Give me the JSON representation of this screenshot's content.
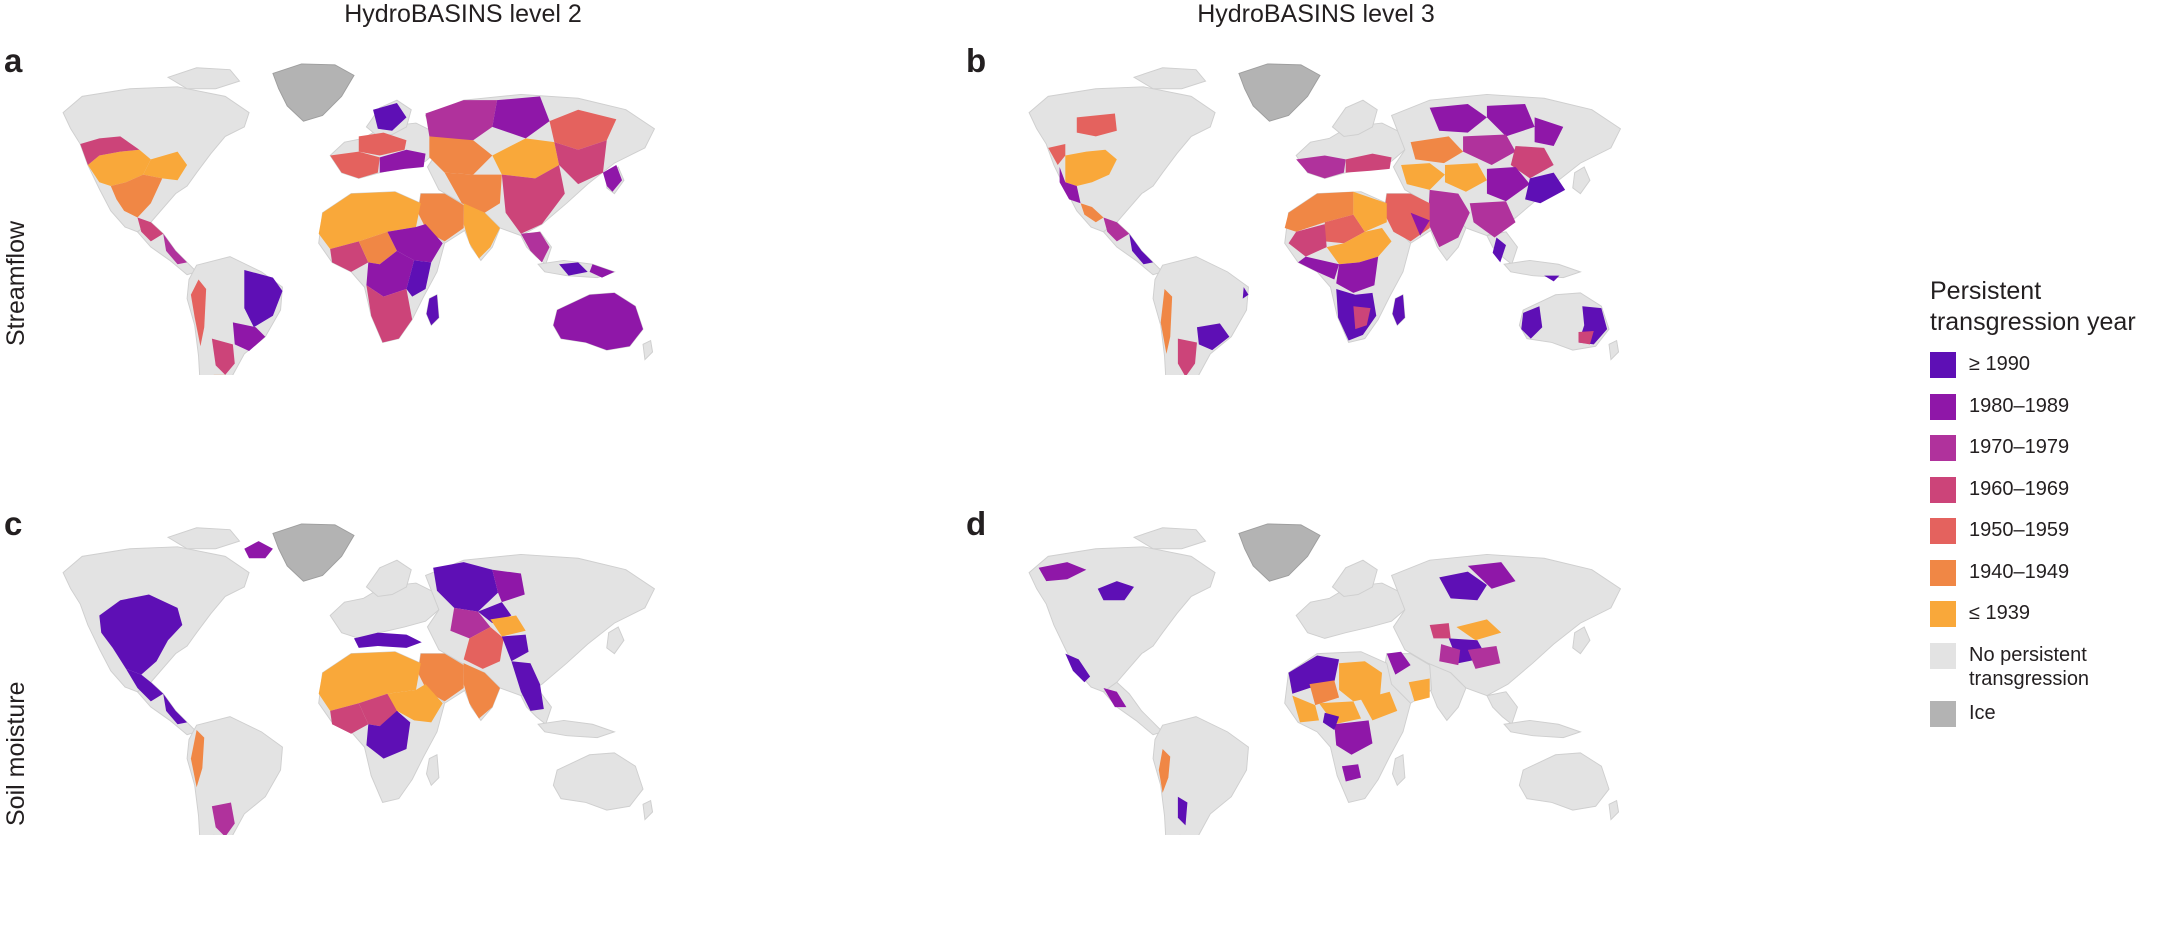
{
  "column_titles": [
    "HydroBASINS level 2",
    "HydroBASINS level 3"
  ],
  "row_titles": [
    "Streamflow",
    "Soil moisture"
  ],
  "panels": [
    {
      "letter": "a"
    },
    {
      "letter": "b"
    },
    {
      "letter": "c"
    },
    {
      "letter": "d"
    }
  ],
  "legend": {
    "title_line1": "Persistent",
    "title_line2": "transgression year",
    "items": [
      {
        "label": "≥ 1990",
        "color": "#5e0fb5"
      },
      {
        "label": "1980–1989",
        "color": "#8f17a8"
      },
      {
        "label": "1970–1979",
        "color": "#b0329c"
      },
      {
        "label": "1960–1969",
        "color": "#cc4479"
      },
      {
        "label": "1950–1959",
        "color": "#e4625e"
      },
      {
        "label": "1940–1949",
        "color": "#f08745"
      },
      {
        "label": "≤ 1939",
        "color": "#f9a83a"
      }
    ],
    "extra": [
      {
        "line1": "No persistent",
        "line2": "transgression",
        "color": "#e3e3e3"
      },
      {
        "line1": "Ice",
        "line2": "",
        "color": "#b3b3b3"
      }
    ]
  }
}
